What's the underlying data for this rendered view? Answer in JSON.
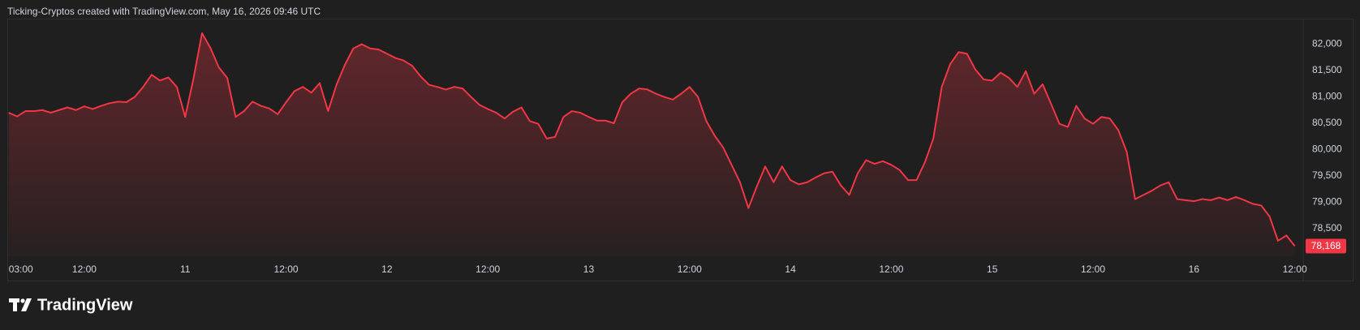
{
  "header": "Ticking-Cryptos created with TradingView.com, May 16, 2026 09:46 UTC",
  "footer": {
    "brand": "TradingView"
  },
  "chart_data": {
    "type": "area",
    "color": "#f23645",
    "grid": false,
    "last_value_label": "78,168",
    "xlim": [
      3,
      157
    ],
    "ylim": [
      77970,
      82470
    ],
    "xticks": [
      {
        "value": 3,
        "label": "03:00"
      },
      {
        "value": 12,
        "label": "12:00"
      },
      {
        "value": 24,
        "label": "11"
      },
      {
        "value": 36,
        "label": "12:00"
      },
      {
        "value": 48,
        "label": "12"
      },
      {
        "value": 60,
        "label": "12:00"
      },
      {
        "value": 72,
        "label": "13"
      },
      {
        "value": 84,
        "label": "12:00"
      },
      {
        "value": 96,
        "label": "14"
      },
      {
        "value": 108,
        "label": "12:00"
      },
      {
        "value": 120,
        "label": "15"
      },
      {
        "value": 132,
        "label": "12:00"
      },
      {
        "value": 144,
        "label": "16"
      },
      {
        "value": 156,
        "label": "12:00"
      }
    ],
    "yticks": [
      {
        "value": 78500,
        "label": "78,500"
      },
      {
        "value": 79000,
        "label": "79,000"
      },
      {
        "value": 79500,
        "label": "79,500"
      },
      {
        "value": 80000,
        "label": "80,000"
      },
      {
        "value": 80500,
        "label": "80,500"
      },
      {
        "value": 81000,
        "label": "81,000"
      },
      {
        "value": 81500,
        "label": "81,500"
      },
      {
        "value": 82000,
        "label": "82,000"
      }
    ],
    "x": [
      3,
      4,
      5,
      6,
      7,
      8,
      9,
      10,
      11,
      12,
      13,
      14,
      15,
      16,
      17,
      18,
      19,
      20,
      21,
      22,
      23,
      24,
      25,
      26,
      27,
      28,
      29,
      30,
      31,
      32,
      33,
      34,
      35,
      36,
      37,
      38,
      39,
      40,
      41,
      42,
      43,
      44,
      45,
      46,
      47,
      48,
      49,
      50,
      51,
      52,
      53,
      54,
      55,
      56,
      57,
      58,
      59,
      60,
      61,
      62,
      63,
      64,
      65,
      66,
      67,
      68,
      69,
      70,
      71,
      72,
      73,
      74,
      75,
      76,
      77,
      78,
      79,
      80,
      81,
      82,
      83,
      84,
      85,
      86,
      87,
      88,
      89,
      90,
      91,
      92,
      93,
      94,
      95,
      96,
      97,
      98,
      99,
      100,
      101,
      102,
      103,
      104,
      105,
      106,
      107,
      108,
      109,
      110,
      111,
      112,
      113,
      114,
      115,
      116,
      117,
      118,
      119,
      120,
      121,
      122,
      123,
      124,
      125,
      126,
      127,
      128,
      129,
      130,
      131,
      132,
      133,
      134,
      135,
      136,
      137,
      138,
      139,
      140,
      141,
      142,
      143,
      144,
      145,
      146,
      147,
      148,
      149,
      150,
      151,
      152,
      153,
      154,
      155,
      156
    ],
    "values": [
      80700,
      80630,
      80730,
      80730,
      80750,
      80700,
      80750,
      80800,
      80750,
      80820,
      80770,
      80830,
      80880,
      80910,
      80900,
      81000,
      81190,
      81420,
      81310,
      81370,
      81190,
      80620,
      81360,
      82210,
      81930,
      81560,
      81360,
      80620,
      80730,
      80910,
      80830,
      80780,
      80670,
      80900,
      81110,
      81190,
      81080,
      81260,
      80730,
      81230,
      81610,
      81920,
      82000,
      81920,
      81900,
      81820,
      81740,
      81690,
      81590,
      81390,
      81230,
      81190,
      81140,
      81190,
      81160,
      81000,
      80850,
      80770,
      80700,
      80590,
      80720,
      80800,
      80540,
      80490,
      80210,
      80240,
      80620,
      80730,
      80700,
      80620,
      80550,
      80550,
      80500,
      80900,
      81060,
      81160,
      81140,
      81060,
      81000,
      80950,
      81060,
      81190,
      81000,
      80540,
      80260,
      80040,
      79710,
      79380,
      78890,
      79300,
      79680,
      79380,
      79680,
      79420,
      79340,
      79380,
      79470,
      79550,
      79580,
      79320,
      79140,
      79550,
      79800,
      79730,
      79780,
      79710,
      79610,
      79420,
      79420,
      79760,
      80210,
      81190,
      81620,
      81850,
      81820,
      81520,
      81330,
      81310,
      81460,
      81360,
      81190,
      81490,
      81060,
      81240,
      80870,
      80490,
      80430,
      80830,
      80590,
      80490,
      80620,
      80590,
      80370,
      79960,
      79060,
      79140,
      79220,
      79320,
      79380,
      79060,
      79040,
      79020,
      79060,
      79040,
      79090,
      79040,
      79100,
      79040,
      78970,
      78940,
      78730,
      78270,
      78370,
      78168
    ]
  }
}
